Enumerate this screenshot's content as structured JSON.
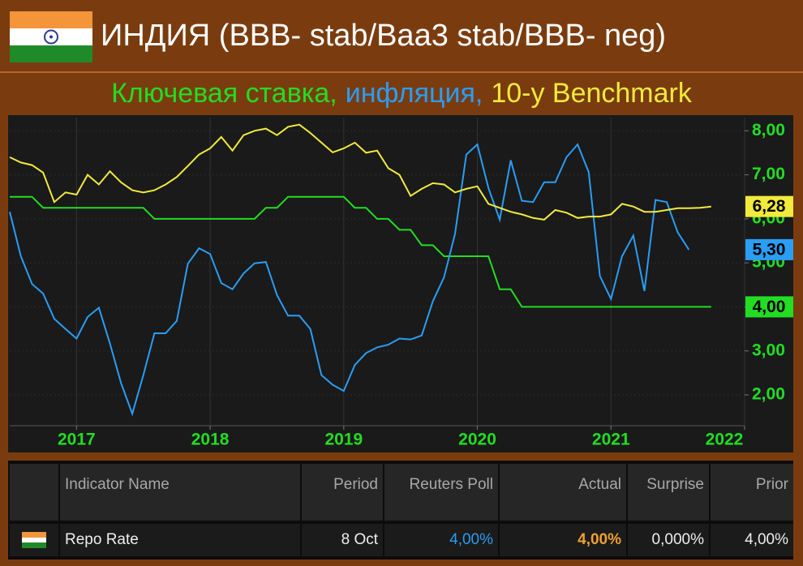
{
  "chart_data": {
    "type": "line",
    "title": "ИНДИЯ (BBB- stab/Baa3 stab/BBB- neg)",
    "x": [
      2016.5,
      2016.583,
      2016.667,
      2016.75,
      2016.833,
      2016.917,
      2017.0,
      2017.083,
      2017.167,
      2017.25,
      2017.333,
      2017.417,
      2017.5,
      2017.583,
      2017.667,
      2017.75,
      2017.833,
      2017.917,
      2018.0,
      2018.083,
      2018.167,
      2018.25,
      2018.333,
      2018.417,
      2018.5,
      2018.583,
      2018.667,
      2018.75,
      2018.833,
      2018.917,
      2019.0,
      2019.083,
      2019.167,
      2019.25,
      2019.333,
      2019.417,
      2019.5,
      2019.583,
      2019.667,
      2019.75,
      2019.833,
      2019.917,
      2020.0,
      2020.083,
      2020.167,
      2020.25,
      2020.333,
      2020.417,
      2020.5,
      2020.583,
      2020.667,
      2020.75,
      2020.833,
      2020.917,
      2021.0,
      2021.083,
      2021.167,
      2021.25,
      2021.333,
      2021.417,
      2021.5,
      2021.583,
      2021.667,
      2021.75
    ],
    "series": [
      {
        "name": "Ключевая ставка,",
        "color": "#22dd22",
        "values": [
          6.5,
          6.5,
          6.5,
          6.25,
          6.25,
          6.25,
          6.25,
          6.25,
          6.25,
          6.25,
          6.25,
          6.25,
          6.25,
          6.0,
          6.0,
          6.0,
          6.0,
          6.0,
          6.0,
          6.0,
          6.0,
          6.0,
          6.0,
          6.25,
          6.25,
          6.5,
          6.5,
          6.5,
          6.5,
          6.5,
          6.5,
          6.25,
          6.25,
          6.0,
          6.0,
          5.75,
          5.75,
          5.4,
          5.4,
          5.15,
          5.15,
          5.15,
          5.15,
          5.15,
          4.4,
          4.4,
          4.0,
          4.0,
          4.0,
          4.0,
          4.0,
          4.0,
          4.0,
          4.0,
          4.0,
          4.0,
          4.0,
          4.0,
          4.0,
          4.0,
          4.0,
          4.0,
          4.0,
          4.0
        ],
        "value_labels": [
          null,
          null,
          null,
          null,
          null,
          null,
          null,
          null,
          null,
          null,
          null,
          null,
          null,
          null,
          null,
          null,
          null,
          null,
          null,
          null,
          null,
          null,
          null,
          null,
          null,
          null,
          null,
          null,
          null,
          null,
          null,
          null,
          null,
          null,
          null,
          null,
          null,
          null,
          null,
          null,
          null,
          null,
          null,
          null,
          null,
          null,
          null,
          null,
          null,
          null,
          null,
          null,
          null,
          null,
          null,
          null,
          null,
          null,
          null,
          null,
          null,
          null,
          null,
          "4,00"
        ]
      },
      {
        "name": "инфляция,",
        "color": "#2a9df4",
        "values": [
          6.16,
          5.15,
          4.52,
          4.3,
          3.73,
          3.5,
          3.28,
          3.77,
          3.98,
          3.17,
          2.27,
          1.57,
          2.45,
          3.4,
          3.4,
          3.68,
          4.98,
          5.33,
          5.2,
          4.54,
          4.4,
          4.76,
          4.99,
          5.02,
          4.27,
          3.8,
          3.8,
          3.5,
          2.45,
          2.23,
          2.09,
          2.68,
          2.95,
          3.08,
          3.14,
          3.28,
          3.26,
          3.35,
          4.13,
          4.67,
          5.66,
          7.46,
          7.69,
          6.7,
          5.98,
          7.33,
          6.41,
          6.38,
          6.83,
          6.83,
          7.4,
          7.69,
          7.06,
          4.7,
          4.18,
          5.15,
          5.62,
          4.36,
          6.43,
          6.38,
          5.69,
          5.3,
          null,
          null
        ],
        "value_labels": [
          null,
          null,
          null,
          null,
          null,
          null,
          null,
          null,
          null,
          null,
          null,
          null,
          null,
          null,
          null,
          null,
          null,
          null,
          null,
          null,
          null,
          null,
          null,
          null,
          null,
          null,
          null,
          null,
          null,
          null,
          null,
          null,
          null,
          null,
          null,
          null,
          null,
          null,
          null,
          null,
          null,
          null,
          null,
          null,
          null,
          null,
          null,
          null,
          null,
          null,
          null,
          null,
          null,
          null,
          null,
          null,
          null,
          null,
          null,
          null,
          null,
          "5,30",
          null,
          null
        ]
      },
      {
        "name": "10-y Benchmark",
        "color": "#f2ea3c",
        "values": [
          7.4,
          7.28,
          7.22,
          7.05,
          6.38,
          6.6,
          6.55,
          7.0,
          6.78,
          7.08,
          6.83,
          6.65,
          6.6,
          6.65,
          6.78,
          6.95,
          7.2,
          7.46,
          7.6,
          7.86,
          7.55,
          7.9,
          8.0,
          8.05,
          7.9,
          8.09,
          8.14,
          7.95,
          7.73,
          7.51,
          7.6,
          7.73,
          7.5,
          7.55,
          7.15,
          7.0,
          6.52,
          6.68,
          6.81,
          6.78,
          6.6,
          6.68,
          6.74,
          6.34,
          6.25,
          6.16,
          6.1,
          6.02,
          5.98,
          6.2,
          6.14,
          6.02,
          6.05,
          6.05,
          6.1,
          6.34,
          6.28,
          6.16,
          6.16,
          6.2,
          6.24,
          6.24,
          6.25,
          6.28
        ],
        "value_labels": [
          null,
          null,
          null,
          null,
          null,
          null,
          null,
          null,
          null,
          null,
          null,
          null,
          null,
          null,
          null,
          null,
          null,
          null,
          null,
          null,
          null,
          null,
          null,
          null,
          null,
          null,
          null,
          null,
          null,
          null,
          null,
          null,
          null,
          null,
          null,
          null,
          null,
          null,
          null,
          null,
          null,
          null,
          null,
          null,
          null,
          null,
          null,
          null,
          null,
          null,
          null,
          null,
          null,
          null,
          null,
          null,
          null,
          null,
          null,
          null,
          null,
          null,
          null,
          "6,28"
        ]
      }
    ],
    "xlim": [
      2016.5,
      2022.0
    ],
    "xticks": [
      2017,
      2018,
      2019,
      2020,
      2021,
      2022
    ],
    "ylim": [
      1.3,
      8.3
    ],
    "yticks": [
      {
        "value": 2,
        "label": "2,00"
      },
      {
        "value": 3,
        "label": "3,00"
      },
      {
        "value": 4,
        "label": "4,00"
      },
      {
        "value": 5,
        "label": "5,00"
      },
      {
        "value": 6,
        "label": "6,00"
      },
      {
        "value": 7,
        "label": "7,00"
      },
      {
        "value": 8,
        "label": "8,00"
      }
    ],
    "grid": true
  },
  "table": {
    "columns": [
      "Indicator Name",
      "Period",
      "Reuters Poll",
      "Actual",
      "Surprise",
      "Prior"
    ],
    "rows": [
      [
        "Repo Rate",
        "8 Oct",
        "4,00%",
        "4,00%",
        "0,000%",
        "4,00%"
      ]
    ]
  }
}
